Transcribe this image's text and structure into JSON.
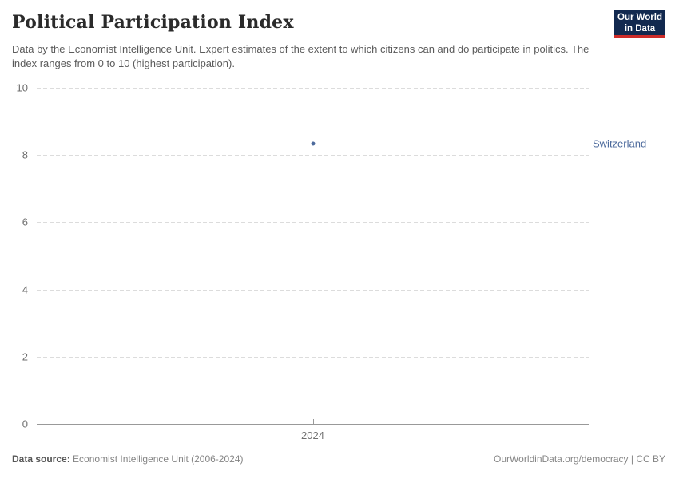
{
  "header": {
    "title": "Political Participation Index",
    "subtitle": "Data by the Economist Intelligence Unit. Expert estimates of the extent to which citizens can and do participate in politics. The index ranges from 0 to 10 (highest participation).",
    "logo": {
      "line1": "Our World",
      "line2": "in Data",
      "bg_color": "#12294f",
      "accent_color": "#ce2c29"
    }
  },
  "chart_data": {
    "type": "scatter",
    "title": "Political Participation Index",
    "xlabel": "",
    "ylabel": "",
    "ylim": [
      0,
      10
    ],
    "yticks": [
      0,
      2,
      4,
      6,
      8,
      10
    ],
    "xticks": [
      2024
    ],
    "grid": "dashed-horizontal",
    "legend_position": "right-inline-label",
    "series": [
      {
        "name": "Switzerland",
        "color": "#4c6a9c",
        "points": [
          {
            "x": 2024,
            "y": 8.33
          }
        ]
      }
    ]
  },
  "footer": {
    "source_label": "Data source:",
    "source_value": " Economist Intelligence Unit (2006-2024)",
    "credit": "OurWorldinData.org/democracy | CC BY"
  }
}
